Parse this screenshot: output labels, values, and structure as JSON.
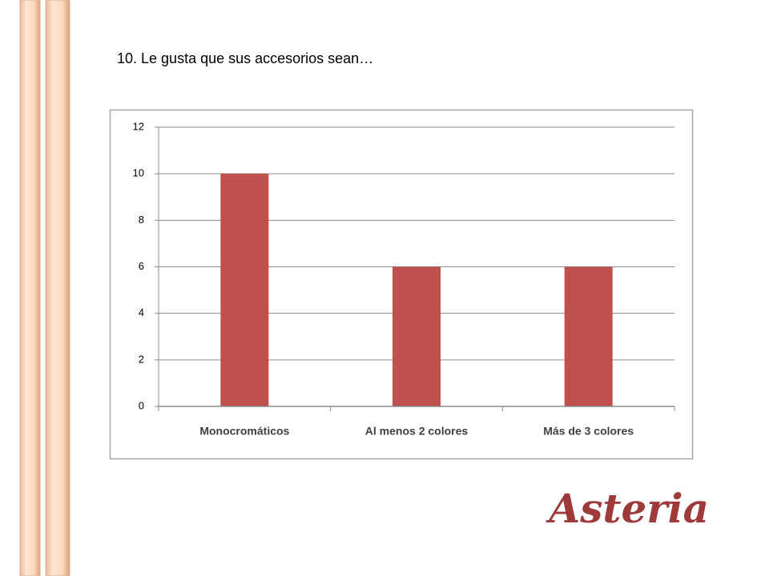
{
  "chart_data": {
    "type": "bar",
    "title": "10. Le gusta que sus accesorios sean…",
    "categories": [
      "Monocromáticos",
      "Al menos 2 colores",
      "Más de 3 colores"
    ],
    "values": [
      10,
      6,
      6
    ],
    "color": "#c0504d",
    "ylim": [
      0,
      12
    ],
    "yticks": [
      0,
      2,
      4,
      6,
      8,
      10,
      12
    ],
    "grid": true
  },
  "logo": "Asteria"
}
